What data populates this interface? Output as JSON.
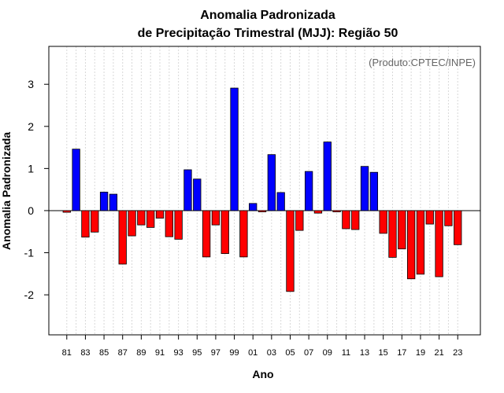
{
  "chart_data": {
    "type": "bar",
    "title": "Anomalia Padronizada",
    "subtitle": "de Precipitação Trimestral (MJJ): Região 50",
    "source_note": "(Produto:CPTEC/INPE)",
    "xlabel": "Ano",
    "ylabel": "Anomalia Padronizada",
    "ylim": [
      -2.95,
      3.9
    ],
    "yticks": [
      -2,
      -1,
      0,
      1,
      2,
      3
    ],
    "ytick_labels": [
      "-2",
      "-1",
      "0",
      "1",
      "2",
      "3"
    ],
    "grid": true,
    "positive_color": "#0000ff",
    "negative_color": "#ff0000",
    "categories": [
      "81",
      "82",
      "83",
      "84",
      "85",
      "86",
      "87",
      "88",
      "89",
      "90",
      "91",
      "92",
      "93",
      "94",
      "95",
      "96",
      "97",
      "98",
      "99",
      "00",
      "01",
      "02",
      "03",
      "04",
      "05",
      "06",
      "07",
      "08",
      "09",
      "10",
      "11",
      "12",
      "13",
      "14",
      "15",
      "16",
      "17",
      "18",
      "19",
      "20",
      "21",
      "22",
      "23"
    ],
    "values": [
      -0.04,
      1.46,
      -0.63,
      -0.51,
      0.44,
      0.39,
      -1.27,
      -0.6,
      -0.34,
      -0.4,
      -0.18,
      -0.62,
      -0.68,
      0.97,
      0.75,
      -1.1,
      -0.34,
      -1.02,
      2.91,
      -1.1,
      0.17,
      -0.03,
      1.33,
      0.43,
      -1.92,
      -0.47,
      0.93,
      -0.06,
      1.63,
      -0.03,
      -0.43,
      -0.45,
      1.05,
      0.91,
      -0.54,
      -1.11,
      -0.91,
      -1.62,
      -1.51,
      -0.32,
      -1.57,
      -0.36,
      -0.81
    ],
    "xtick_labels": [
      "81",
      "83",
      "85",
      "87",
      "89",
      "91",
      "93",
      "95",
      "97",
      "99",
      "01",
      "03",
      "05",
      "07",
      "09",
      "11",
      "13",
      "15",
      "17",
      "19",
      "21",
      "23"
    ]
  }
}
